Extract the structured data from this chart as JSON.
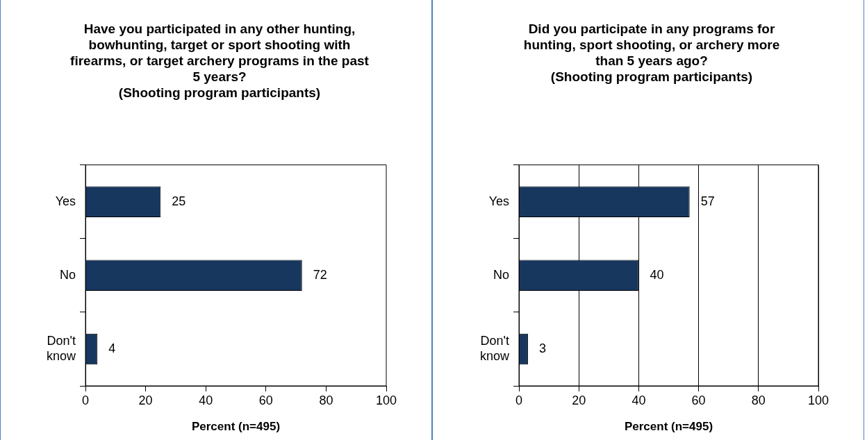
{
  "chart_data": [
    {
      "type": "bar",
      "orientation": "horizontal",
      "title": "Have you participated in any other hunting, bowhunting, target or sport shooting with firearms, or target archery programs in the past 5 years?\n(Shooting program participants)",
      "categories": [
        "Yes",
        "No",
        "Don't know"
      ],
      "values": [
        25,
        72,
        4
      ],
      "color": "#17375e",
      "xlabel": "Percent (n=495)",
      "xlim": [
        0,
        100
      ],
      "xticks": [
        0,
        20,
        40,
        60,
        80,
        100
      ],
      "grid": false,
      "legend": false,
      "data_labels": true
    },
    {
      "type": "bar",
      "orientation": "horizontal",
      "title": "Did you participate in any programs for hunting, sport shooting, or archery more than 5 years ago?\n(Shooting program participants)",
      "categories": [
        "Yes",
        "No",
        "Don't know"
      ],
      "values": [
        57,
        40,
        3
      ],
      "color": "#17375e",
      "xlabel": "Percent (n=495)",
      "xlim": [
        0,
        100
      ],
      "xticks": [
        0,
        20,
        40,
        60,
        80,
        100
      ],
      "grid": "x",
      "legend": false,
      "data_labels": true
    }
  ]
}
